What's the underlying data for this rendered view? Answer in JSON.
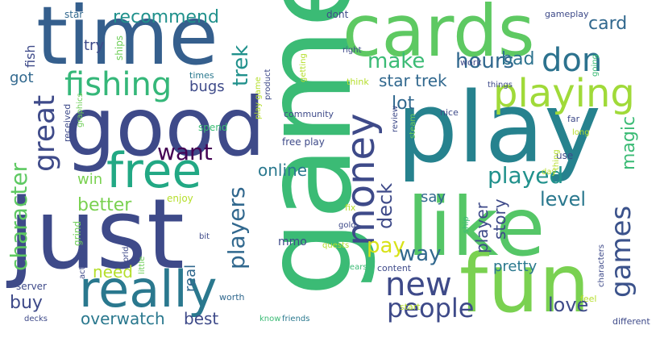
{
  "palette": {
    "dark_purple": "#440154",
    "indigo": "#3e4a89",
    "blue": "#31688e",
    "teal": "#26828e",
    "teal_green": "#1f9e89",
    "green": "#35b779",
    "light_green": "#6ece58",
    "lime": "#b5de2b",
    "yellow": "#d8e219"
  },
  "words": [
    {
      "text": "game",
      "color": "#3bbb75",
      "vertical": true
    },
    {
      "text": "play",
      "color": "#26828e",
      "vertical": false
    },
    {
      "text": "just",
      "color": "#3e4a89",
      "vertical": false
    },
    {
      "text": "like",
      "color": "#55c667",
      "vertical": false
    },
    {
      "text": "good",
      "color": "#3e4a89",
      "vertical": false
    },
    {
      "text": "time",
      "color": "#355f8d",
      "vertical": false
    },
    {
      "text": "cards",
      "color": "#5ec962",
      "vertical": false
    },
    {
      "text": "fun",
      "color": "#7ad151",
      "vertical": false
    },
    {
      "text": "free",
      "color": "#22a884",
      "vertical": false
    },
    {
      "text": "really",
      "color": "#2a788e",
      "vertical": false
    },
    {
      "text": "money",
      "color": "#3e4a89",
      "vertical": true
    },
    {
      "text": "playing",
      "color": "#a0da39",
      "vertical": false
    },
    {
      "text": "don",
      "color": "#2c728e",
      "vertical": false
    },
    {
      "text": "fishing",
      "color": "#35b779",
      "vertical": false
    },
    {
      "text": "great",
      "color": "#3e4a89",
      "vertical": true
    },
    {
      "text": "new",
      "color": "#3e4a89",
      "vertical": false
    },
    {
      "text": "people",
      "color": "#3e4a89",
      "vertical": false
    },
    {
      "text": "games",
      "color": "#3b528b",
      "vertical": true
    },
    {
      "text": "want",
      "color": "#440154",
      "vertical": false
    },
    {
      "text": "played",
      "color": "#21918c",
      "vertical": false
    },
    {
      "text": "character",
      "color": "#5ec962",
      "vertical": true
    },
    {
      "text": "players",
      "color": "#31688e",
      "vertical": true
    },
    {
      "text": "make",
      "color": "#3bbb75",
      "vertical": false
    },
    {
      "text": "hours",
      "color": "#31688e",
      "vertical": false
    },
    {
      "text": "recommend",
      "color": "#21918c",
      "vertical": false
    },
    {
      "text": "bad",
      "color": "#2c728e",
      "vertical": false
    },
    {
      "text": "card",
      "color": "#31688e",
      "vertical": false
    },
    {
      "text": "trek",
      "color": "#21918c",
      "vertical": true
    },
    {
      "text": "star trek",
      "color": "#31688e",
      "vertical": false
    },
    {
      "text": "lot",
      "color": "#31688e",
      "vertical": false
    },
    {
      "text": "level",
      "color": "#2a788e",
      "vertical": false
    },
    {
      "text": "deck",
      "color": "#3e4a89",
      "vertical": true
    },
    {
      "text": "pay",
      "color": "#d8e219",
      "vertical": false
    },
    {
      "text": "way",
      "color": "#31688e",
      "vertical": false
    },
    {
      "text": "magic",
      "color": "#3bbb75",
      "vertical": true
    },
    {
      "text": "better",
      "color": "#7ad151",
      "vertical": false
    },
    {
      "text": "online",
      "color": "#2a788e",
      "vertical": false
    },
    {
      "text": "say",
      "color": "#31688e",
      "vertical": false
    },
    {
      "text": "story",
      "color": "#3e4a89",
      "vertical": true
    },
    {
      "text": "player",
      "color": "#3e4a89",
      "vertical": true
    },
    {
      "text": "pretty",
      "color": "#2a788e",
      "vertical": false
    },
    {
      "text": "love",
      "color": "#3e4a89",
      "vertical": false
    },
    {
      "text": "buy",
      "color": "#3e4a89",
      "vertical": false
    },
    {
      "text": "need",
      "color": "#b5de2b",
      "vertical": false
    },
    {
      "text": "overwatch",
      "color": "#2a788e",
      "vertical": false
    },
    {
      "text": "best",
      "color": "#3e4a89",
      "vertical": false
    },
    {
      "text": "real",
      "color": "#31688e",
      "vertical": true
    },
    {
      "text": "win",
      "color": "#7ad151",
      "vertical": false
    },
    {
      "text": "bugs",
      "color": "#3e4a89",
      "vertical": false
    },
    {
      "text": "try",
      "color": "#3e4a89",
      "vertical": false
    },
    {
      "text": "got",
      "color": "#31688e",
      "vertical": false
    },
    {
      "text": "fish",
      "color": "#3e4a89",
      "vertical": true
    },
    {
      "text": "mmo",
      "color": "#3e4a89",
      "vertical": false
    },
    {
      "text": "star",
      "color": "#31688e",
      "vertical": false
    },
    {
      "text": "ships",
      "color": "#6ece58",
      "vertical": true
    },
    {
      "text": "times",
      "color": "#2a788e",
      "vertical": false
    },
    {
      "text": "received",
      "color": "#3e4a89",
      "vertical": true
    },
    {
      "text": "graphics",
      "color": "#6ece58",
      "vertical": true
    },
    {
      "text": "spend",
      "color": "#3bbb75",
      "vertical": false
    },
    {
      "text": "enjoy",
      "color": "#b5de2b",
      "vertical": false
    },
    {
      "text": "grind",
      "color": "#6ece58",
      "vertical": true
    },
    {
      "text": "actually",
      "color": "#3e4a89",
      "vertical": true
    },
    {
      "text": "world",
      "color": "#3e4a89",
      "vertical": true
    },
    {
      "text": "server",
      "color": "#3e4a89",
      "vertical": false
    },
    {
      "text": "decks",
      "color": "#3e4a89",
      "vertical": false
    },
    {
      "text": "bit",
      "color": "#3e4a89",
      "vertical": false
    },
    {
      "text": "little",
      "color": "#6ece58",
      "vertical": true
    },
    {
      "text": "worth",
      "color": "#31688e",
      "vertical": false
    },
    {
      "text": "know",
      "color": "#3bbb75",
      "vertical": false
    },
    {
      "text": "friends",
      "color": "#2a788e",
      "vertical": false
    },
    {
      "text": "start",
      "color": "#b5de2b",
      "vertical": false
    },
    {
      "text": "content",
      "color": "#3e4a89",
      "vertical": false
    },
    {
      "text": "years",
      "color": "#3bbb75",
      "vertical": false
    },
    {
      "text": "quests",
      "color": "#b5de2b",
      "vertical": false
    },
    {
      "text": "gold",
      "color": "#3e4a89",
      "vertical": false
    },
    {
      "text": "ship",
      "color": "#3bbb75",
      "vertical": true
    },
    {
      "text": "fix",
      "color": "#b5de2b",
      "vertical": false
    },
    {
      "text": "review",
      "color": "#3e4a89",
      "vertical": true
    },
    {
      "text": "steam",
      "color": "#6ece58",
      "vertical": true
    },
    {
      "text": "free play",
      "color": "#3e4a89",
      "vertical": false
    },
    {
      "text": "community",
      "color": "#3e4a89",
      "vertical": false
    },
    {
      "text": "play game",
      "color": "#b5de2b",
      "vertical": true
    },
    {
      "text": "product",
      "color": "#3e4a89",
      "vertical": true
    },
    {
      "text": "getting",
      "color": "#b5de2b",
      "vertical": true
    },
    {
      "text": "dont",
      "color": "#3e4a89",
      "vertical": false
    },
    {
      "text": "right",
      "color": "#3e4a89",
      "vertical": false
    },
    {
      "text": "think",
      "color": "#b5de2b",
      "vertical": false
    },
    {
      "text": "nice",
      "color": "#3e4a89",
      "vertical": false
    },
    {
      "text": "work",
      "color": "#3e4a89",
      "vertical": false
    },
    {
      "text": "things",
      "color": "#3e4a89",
      "vertical": false
    },
    {
      "text": "gameplay",
      "color": "#3e4a89",
      "vertical": false
    },
    {
      "text": "going",
      "color": "#3bbb75",
      "vertical": true
    },
    {
      "text": "far",
      "color": "#3e4a89",
      "vertical": false
    },
    {
      "text": "long",
      "color": "#b5de2b",
      "vertical": false
    },
    {
      "text": "use",
      "color": "#3e4a89",
      "vertical": false
    },
    {
      "text": "thing",
      "color": "#b5de2b",
      "vertical": true
    },
    {
      "text": "day",
      "color": "#b5de2b",
      "vertical": false
    },
    {
      "text": "feel",
      "color": "#b5de2b",
      "vertical": false
    },
    {
      "text": "characters",
      "color": "#3e4a89",
      "vertical": true
    },
    {
      "text": "different",
      "color": "#3e4a89",
      "vertical": false
    }
  ]
}
